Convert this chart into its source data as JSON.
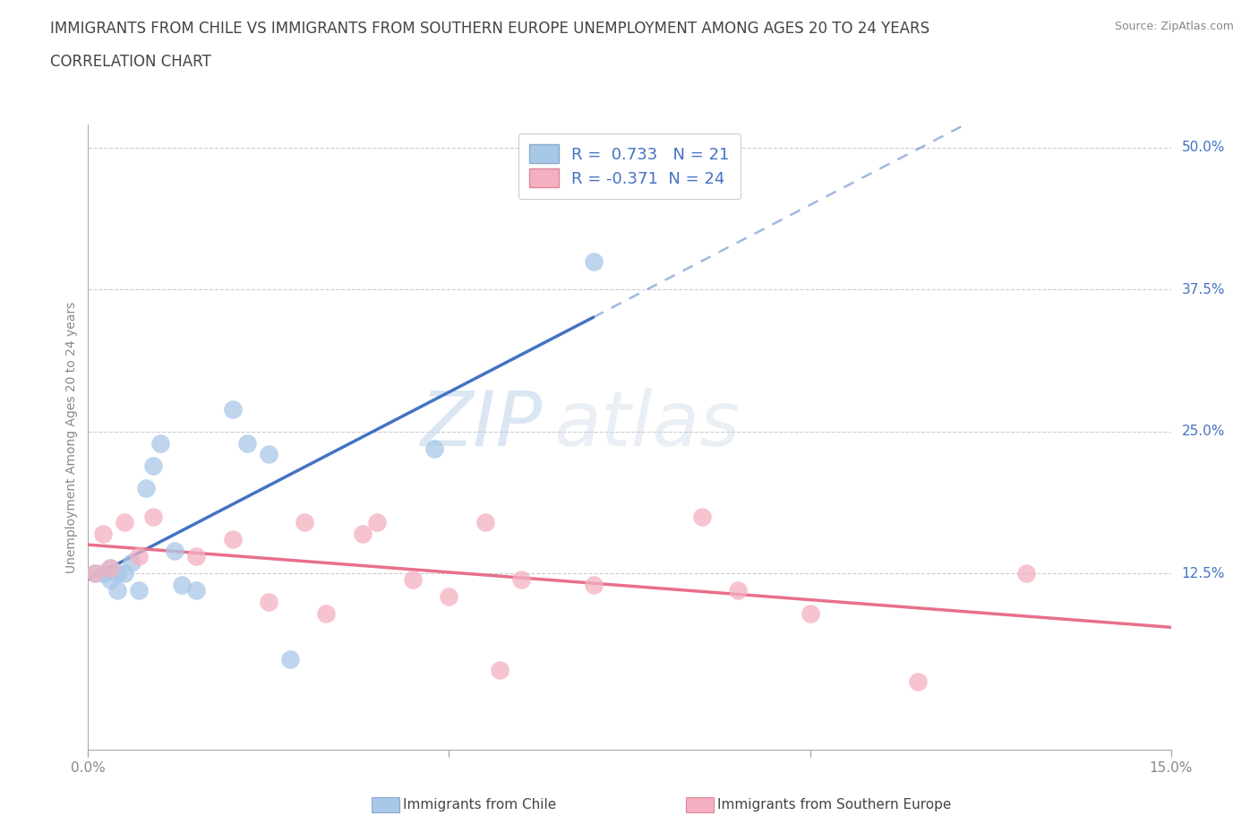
{
  "title_line1": "IMMIGRANTS FROM CHILE VS IMMIGRANTS FROM SOUTHERN EUROPE UNEMPLOYMENT AMONG AGES 20 TO 24 YEARS",
  "title_line2": "CORRELATION CHART",
  "source": "Source: ZipAtlas.com",
  "ylabel": "Unemployment Among Ages 20 to 24 years",
  "xlim": [
    0.0,
    0.15
  ],
  "ylim": [
    -0.03,
    0.52
  ],
  "x_ticks": [
    0.0,
    0.05,
    0.1,
    0.15
  ],
  "x_tick_labels": [
    "0.0%",
    "",
    "",
    "15.0%"
  ],
  "y_tick_labels_right": [
    "12.5%",
    "25.0%",
    "37.5%",
    "50.0%"
  ],
  "y_tick_positions_right": [
    0.125,
    0.25,
    0.375,
    0.5
  ],
  "chile_R": 0.733,
  "chile_N": 21,
  "southern_europe_R": -0.371,
  "southern_europe_N": 24,
  "chile_color": "#a8c8e8",
  "southern_europe_color": "#f4b0c0",
  "chile_line_color": "#4472c4",
  "southern_europe_line_color": "#e8708a",
  "watermark_zip": "ZIP",
  "watermark_atlas": "atlas",
  "chile_x": [
    0.001,
    0.002,
    0.003,
    0.003,
    0.004,
    0.004,
    0.005,
    0.006,
    0.007,
    0.008,
    0.009,
    0.01,
    0.012,
    0.013,
    0.015,
    0.02,
    0.022,
    0.025,
    0.028,
    0.048,
    0.07
  ],
  "chile_y": [
    0.125,
    0.125,
    0.12,
    0.13,
    0.125,
    0.11,
    0.125,
    0.135,
    0.11,
    0.2,
    0.22,
    0.24,
    0.145,
    0.115,
    0.11,
    0.27,
    0.24,
    0.23,
    0.05,
    0.235,
    0.4
  ],
  "southern_europe_x": [
    0.001,
    0.002,
    0.003,
    0.005,
    0.007,
    0.009,
    0.015,
    0.02,
    0.025,
    0.03,
    0.033,
    0.038,
    0.04,
    0.045,
    0.05,
    0.055,
    0.057,
    0.06,
    0.07,
    0.085,
    0.09,
    0.1,
    0.115,
    0.13
  ],
  "southern_europe_y": [
    0.125,
    0.16,
    0.13,
    0.17,
    0.14,
    0.175,
    0.14,
    0.155,
    0.1,
    0.17,
    0.09,
    0.16,
    0.17,
    0.12,
    0.105,
    0.17,
    0.04,
    0.12,
    0.115,
    0.175,
    0.11,
    0.09,
    0.03,
    0.125
  ],
  "legend_label_chile": "Immigrants from Chile",
  "legend_label_southern": "Immigrants from Southern Europe",
  "title_fontsize": 12,
  "axis_label_fontsize": 10,
  "tick_fontsize": 11,
  "legend_fontsize": 13
}
